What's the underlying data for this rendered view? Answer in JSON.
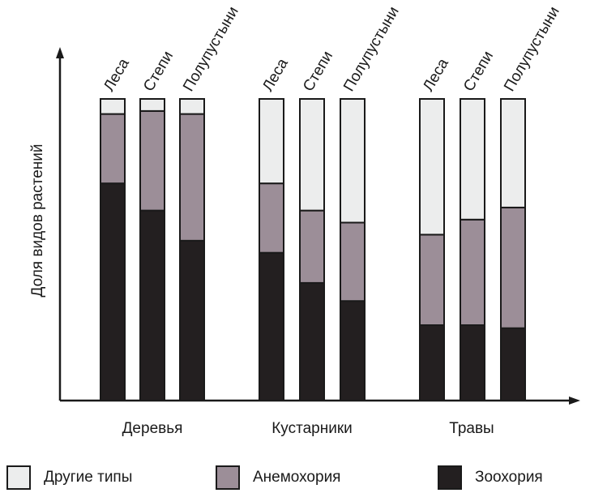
{
  "chart_data": {
    "type": "bar",
    "stacked": true,
    "normalized": true,
    "ylabel": "Доля видов растений",
    "xlabel": "",
    "ylim": [
      0,
      1
    ],
    "grid": false,
    "groups": [
      {
        "name": "Деревья",
        "categories": [
          "Леса",
          "Степи",
          "Полупустыни"
        ]
      },
      {
        "name": "Кустарники",
        "categories": [
          "Леса",
          "Степи",
          "Полупустыни"
        ]
      },
      {
        "name": "Травы",
        "categories": [
          "Леса",
          "Степи",
          "Полупустыни"
        ]
      }
    ],
    "series": [
      {
        "name": "Зоохория",
        "color": "#231f20",
        "values": [
          [
            0.72,
            0.63,
            0.53
          ],
          [
            0.49,
            0.39,
            0.33
          ],
          [
            0.25,
            0.25,
            0.24
          ]
        ]
      },
      {
        "name": "Анемохория",
        "color": "#9c8e98",
        "values": [
          [
            0.23,
            0.33,
            0.42
          ],
          [
            0.23,
            0.24,
            0.26
          ],
          [
            0.3,
            0.35,
            0.4
          ]
        ]
      },
      {
        "name": "Другие типы",
        "color": "#eceded",
        "values": [
          [
            0.05,
            0.04,
            0.05
          ],
          [
            0.28,
            0.37,
            0.41
          ],
          [
            0.45,
            0.4,
            0.36
          ]
        ]
      }
    ],
    "legend_position": "bottom"
  }
}
